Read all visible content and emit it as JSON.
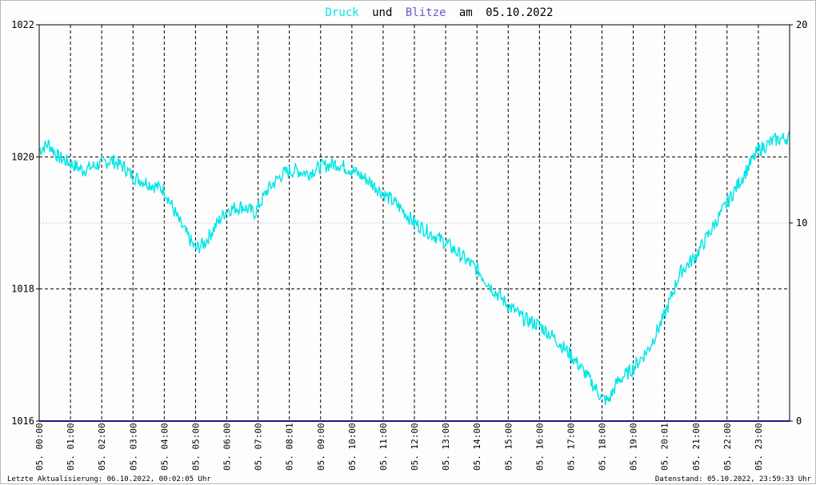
{
  "title": {
    "word_pressure": "Druck",
    "word_and": "und",
    "word_lightning": "Blitze",
    "word_on": "am",
    "date": "05.10.2022",
    "colors": {
      "pressure": "#00e5e5",
      "lightning": "#6b5acd",
      "text": "#000000"
    }
  },
  "footer": {
    "left": "Letzte Aktualisierung: 06.10.2022, 00:02:05 Uhr",
    "right": "Datenstand: 05.10.2022, 23:59:33 Uhr"
  },
  "chart_data": {
    "type": "line",
    "title": "Druck und Blitze am 05.10.2022",
    "x_unit": "hours",
    "xlim": [
      0,
      24
    ],
    "y_left": {
      "range": [
        1016,
        1022
      ],
      "ticks": [
        "1016",
        "1018",
        "1020",
        "1022"
      ]
    },
    "y_right": {
      "range": [
        0,
        20
      ],
      "ticks": [
        "0",
        "10",
        "20"
      ]
    },
    "x_ticks": [
      "05. 00:00",
      "05. 01:00",
      "05. 02:00",
      "05. 03:00",
      "05. 04:00",
      "05. 05:00",
      "05. 06:00",
      "05. 07:00",
      "05. 08:01",
      "05. 09:00",
      "05. 10:00",
      "05. 11:00",
      "05. 12:00",
      "05. 13:00",
      "05. 14:00",
      "05. 15:00",
      "05. 16:00",
      "05. 17:00",
      "05. 18:00",
      "05. 19:00",
      "05. 20:01",
      "05. 21:00",
      "05. 22:00",
      "05. 23:00"
    ],
    "grid": true,
    "series": [
      {
        "name": "Druck",
        "axis": "left",
        "color": "#00e5e5",
        "x": [
          0,
          0.3,
          0.6,
          1.0,
          1.4,
          2.0,
          2.3,
          2.7,
          3.0,
          3.5,
          4.0,
          4.5,
          5.0,
          5.3,
          5.7,
          6.0,
          6.5,
          6.9,
          7.3,
          7.8,
          8.2,
          8.6,
          9.0,
          9.5,
          10.0,
          10.5,
          11.0,
          11.5,
          12.0,
          12.5,
          13.0,
          13.5,
          14.0,
          14.5,
          15.0,
          15.5,
          16.0,
          16.5,
          17.0,
          17.5,
          18.0,
          18.2,
          18.5,
          19.0,
          19.5,
          20.0,
          20.5,
          21.0,
          21.5,
          22.0,
          22.5,
          23.0,
          23.5,
          24.0
        ],
        "values": [
          1020.1,
          1020.2,
          1020.0,
          1019.9,
          1019.8,
          1019.9,
          1019.95,
          1019.85,
          1019.7,
          1019.6,
          1019.5,
          1019.0,
          1018.6,
          1018.7,
          1019.0,
          1019.2,
          1019.25,
          1019.15,
          1019.5,
          1019.75,
          1019.8,
          1019.75,
          1019.85,
          1019.9,
          1019.8,
          1019.65,
          1019.45,
          1019.25,
          1019.0,
          1018.85,
          1018.7,
          1018.5,
          1018.3,
          1018.0,
          1017.75,
          1017.55,
          1017.45,
          1017.25,
          1017.0,
          1016.7,
          1016.35,
          1016.3,
          1016.6,
          1016.8,
          1017.1,
          1017.6,
          1018.25,
          1018.5,
          1018.9,
          1019.3,
          1019.7,
          1020.1,
          1020.25,
          1020.3
        ]
      },
      {
        "name": "Blitze",
        "axis": "right",
        "color": "#1a1a80",
        "x": [
          0,
          24
        ],
        "values": [
          0,
          0
        ]
      }
    ]
  }
}
